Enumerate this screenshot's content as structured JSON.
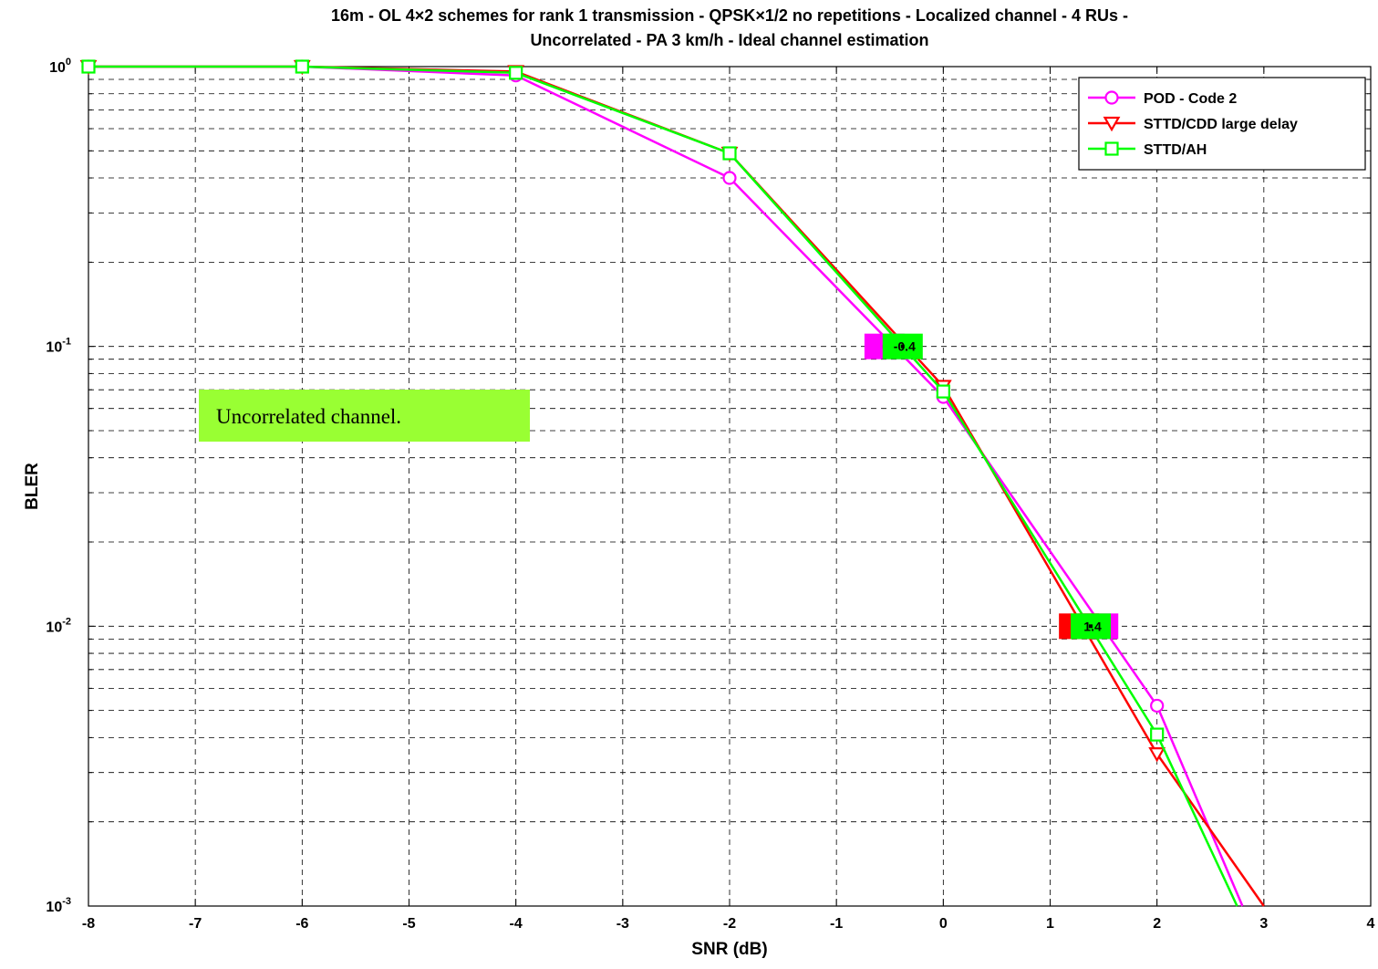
{
  "chart_data": {
    "type": "line",
    "title_lines": [
      "16m - OL 4×2 schemes for rank 1 transmission - QPSK×1/2 no repetitions - Localized channel - 4 RUs -",
      "Uncorrelated - PA 3 km/h - Ideal channel estimation"
    ],
    "xlabel": "SNR (dB)",
    "ylabel": "BLER",
    "xlim": [
      -8,
      4
    ],
    "ylim": [
      0.001,
      1
    ],
    "yscale": "log",
    "grid": true,
    "legend_position": "top-right",
    "x_ticks": [
      -8,
      -7,
      -6,
      -5,
      -4,
      -3,
      -2,
      -1,
      0,
      1,
      2,
      3,
      4
    ],
    "x_tick_labels": [
      "-8",
      "-7",
      "-6",
      "-5",
      "-4",
      "-3",
      "-2",
      "-1",
      "0",
      "1",
      "2",
      "3",
      "4"
    ],
    "y_ticks": [
      {
        "value": 1,
        "base": "10",
        "exp": "0"
      },
      {
        "value": 0.1,
        "base": "10",
        "exp": "-1"
      },
      {
        "value": 0.01,
        "base": "10",
        "exp": "-2"
      },
      {
        "value": 0.001,
        "base": "10",
        "exp": "-3"
      }
    ],
    "series": [
      {
        "name": "POD - Code 2",
        "color": "#ff00ff",
        "marker": "circle",
        "x": [
          -8,
          -6,
          -4,
          -2,
          0,
          2,
          2.8
        ],
        "y": [
          1.0,
          1.0,
          0.93,
          0.4,
          0.066,
          0.0052,
          0.001
        ],
        "marker_x": [
          -8,
          -6,
          -4,
          -2,
          0,
          2
        ]
      },
      {
        "name": "STTD/CDD large delay",
        "color": "#ff0000",
        "marker": "triangle-down",
        "x": [
          -8,
          -6,
          -4,
          -2,
          0,
          2,
          3
        ],
        "y": [
          1.0,
          1.0,
          0.96,
          0.49,
          0.072,
          0.0035,
          0.001
        ],
        "marker_x": [
          -8,
          -6,
          -4,
          -2,
          0,
          2
        ]
      },
      {
        "name": "STTD/AH",
        "color": "#00ff00",
        "marker": "square",
        "x": [
          -8,
          -6,
          -4,
          -2,
          0,
          2,
          2.75
        ],
        "y": [
          1.0,
          1.0,
          0.95,
          0.49,
          0.069,
          0.0041,
          0.001
        ],
        "marker_x": [
          -8,
          -6,
          -4,
          -2,
          0,
          2
        ]
      }
    ],
    "annotations": [
      {
        "series": "POD - Code 2",
        "x": -0.55,
        "y": 0.1,
        "bg": "#ff00ff",
        "text": ""
      },
      {
        "series": "STTD/AH",
        "x": -0.38,
        "y": 0.1,
        "bg": "#00ff00",
        "text": "-0.4"
      },
      {
        "series": "POD - Code 2",
        "x": 1.45,
        "y": 0.01,
        "bg": "#ff00ff",
        "text": "5"
      },
      {
        "series": "STTD/CDD large delay",
        "x": 1.27,
        "y": 0.01,
        "bg": "#ff0000",
        "text": ""
      },
      {
        "series": "STTD/AH",
        "x": 1.38,
        "y": 0.01,
        "bg": "#00ff00",
        "text": "1.4"
      }
    ],
    "note": {
      "text": "Uncorrelated channel.",
      "bg": "#99ff33"
    }
  }
}
